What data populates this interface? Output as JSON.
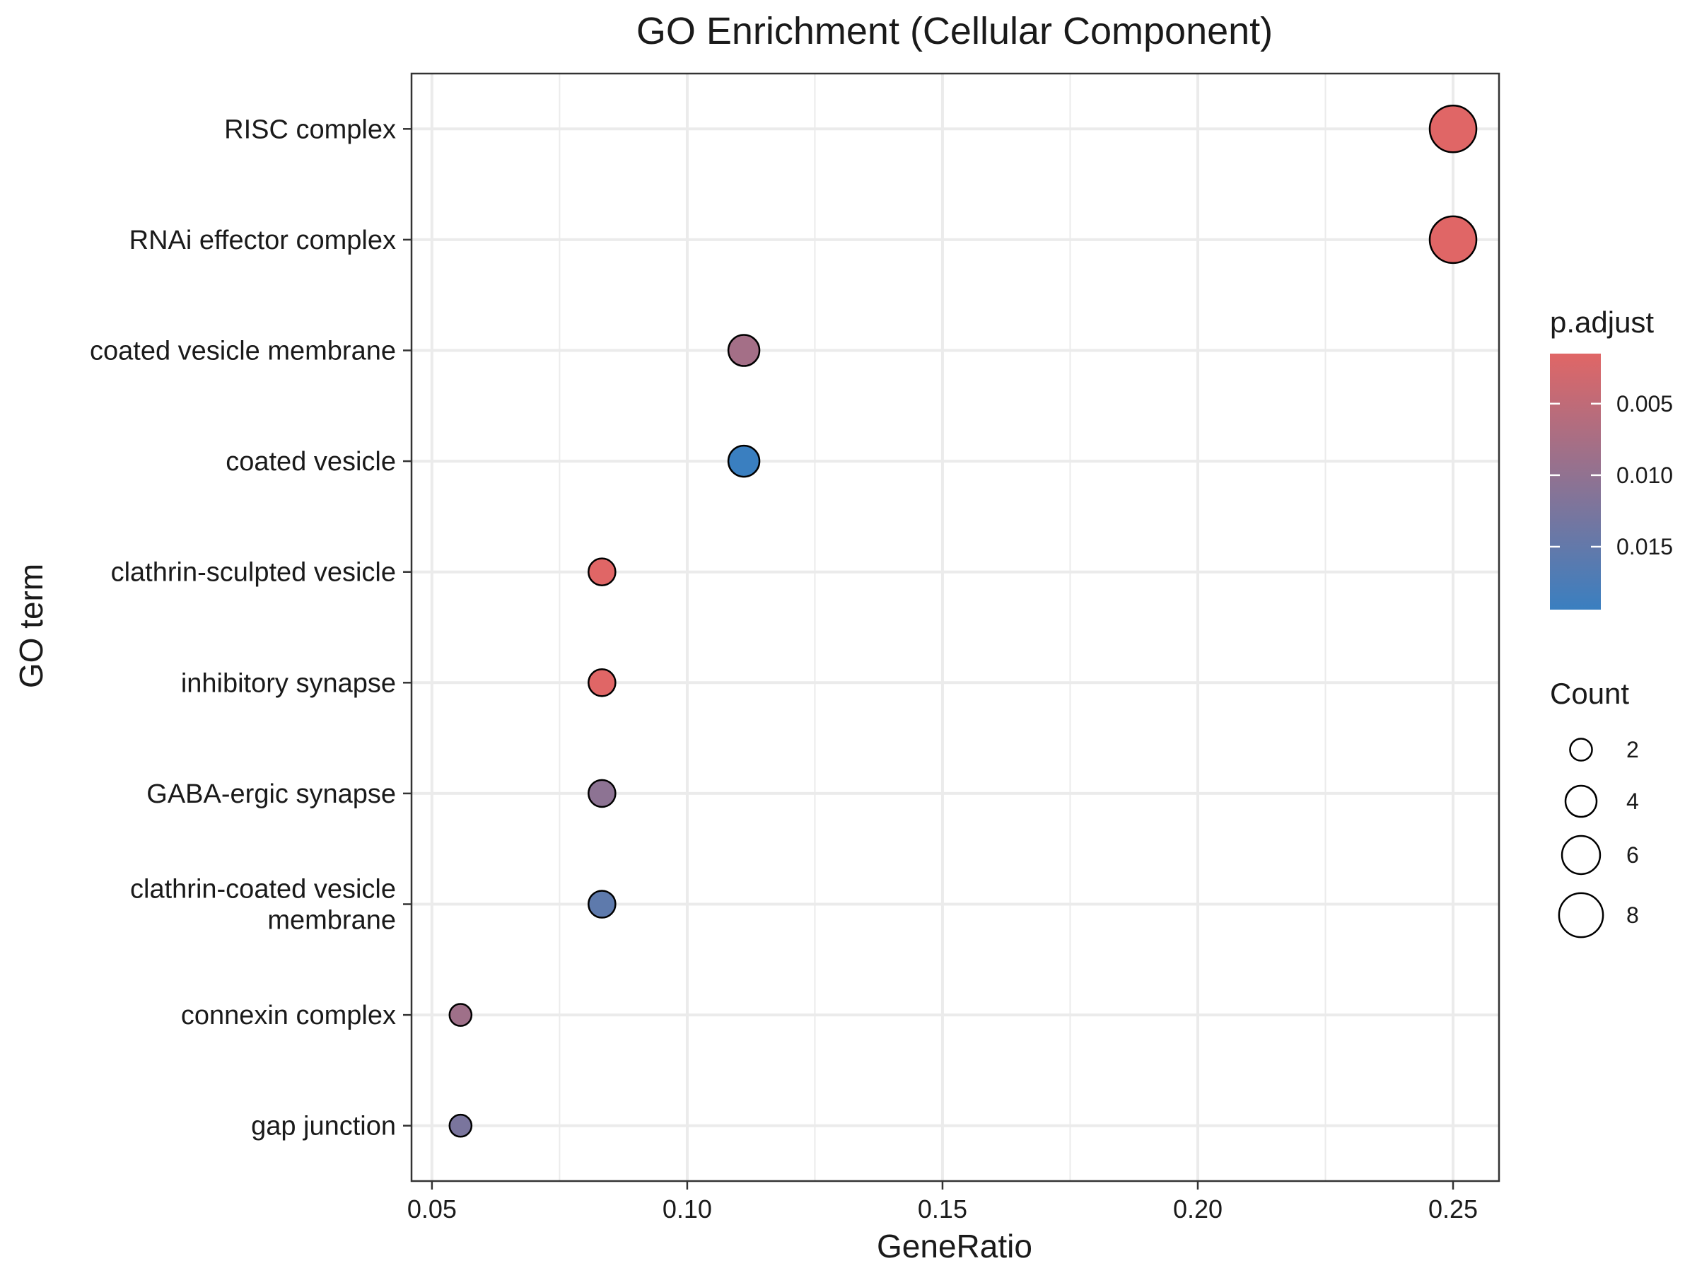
{
  "chart_data": {
    "type": "scatter",
    "title": "GO Enrichment (Cellular Component)",
    "xlabel": "GeneRatio",
    "ylabel": "GO term",
    "xlim": [
      0.046,
      0.259
    ],
    "xticks": [
      0.05,
      0.1,
      0.15,
      0.2,
      0.25
    ],
    "xtick_labels": [
      "0.05",
      "0.10",
      "0.15",
      "0.20",
      "0.25"
    ],
    "grid": true,
    "terms": [
      {
        "label": [
          "RISC complex"
        ],
        "gene_ratio": 0.25,
        "count": 9,
        "p_adjust": 0.0015
      },
      {
        "label": [
          "RNAi effector complex"
        ],
        "gene_ratio": 0.25,
        "count": 9,
        "p_adjust": 0.0015
      },
      {
        "label": [
          "coated vesicle membrane"
        ],
        "gene_ratio": 0.1111,
        "count": 4,
        "p_adjust": 0.008
      },
      {
        "label": [
          "coated vesicle"
        ],
        "gene_ratio": 0.1111,
        "count": 4,
        "p_adjust": 0.0194
      },
      {
        "label": [
          "clathrin-sculpted vesicle"
        ],
        "gene_ratio": 0.0833,
        "count": 3,
        "p_adjust": 0.0015
      },
      {
        "label": [
          "inhibitory synapse"
        ],
        "gene_ratio": 0.0833,
        "count": 3,
        "p_adjust": 0.0015
      },
      {
        "label": [
          "GABA-ergic synapse"
        ],
        "gene_ratio": 0.0833,
        "count": 3,
        "p_adjust": 0.0105
      },
      {
        "label": [
          "clathrin-coated vesicle",
          "membrane"
        ],
        "gene_ratio": 0.0833,
        "count": 3,
        "p_adjust": 0.0155
      },
      {
        "label": [
          "connexin complex"
        ],
        "gene_ratio": 0.0556,
        "count": 2,
        "p_adjust": 0.0085
      },
      {
        "label": [
          "gap junction"
        ],
        "gene_ratio": 0.0556,
        "count": 2,
        "p_adjust": 0.0125
      }
    ],
    "color_legend": {
      "title": "p.adjust",
      "range": [
        0.0015,
        0.0194
      ],
      "low_color": "#e06666",
      "high_color": "#3a7fc0",
      "breaks": [
        0.005,
        0.01,
        0.015
      ],
      "break_labels": [
        "0.005",
        "0.010",
        "0.015"
      ]
    },
    "size_legend": {
      "title": "Count",
      "breaks": [
        2,
        4,
        6,
        8
      ],
      "break_labels": [
        "2",
        "4",
        "6",
        "8"
      ]
    },
    "legend_position": "right"
  }
}
